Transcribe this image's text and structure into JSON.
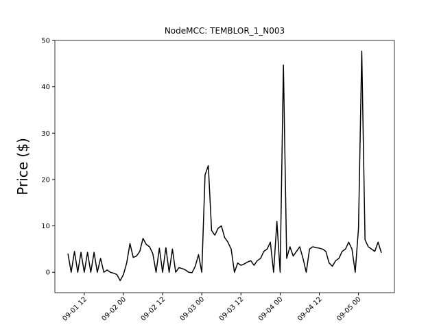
{
  "chart_data": {
    "type": "line",
    "title": "NodeMCC: TEMBLOR_1_N003",
    "y_label": "Price ($)",
    "color": "#000000",
    "x": [
      "09-01 07",
      "09-01 08",
      "09-01 09",
      "09-01 10",
      "09-01 11",
      "09-01 12",
      "09-01 13",
      "09-01 14",
      "09-01 15",
      "09-01 16",
      "09-01 17",
      "09-01 18",
      "09-01 19",
      "09-01 20",
      "09-01 21",
      "09-01 22",
      "09-01 23",
      "09-02 00",
      "09-02 01",
      "09-02 02",
      "09-02 03",
      "09-02 04",
      "09-02 05",
      "09-02 06",
      "09-02 07",
      "09-02 08",
      "09-02 09",
      "09-02 10",
      "09-02 11",
      "09-02 12",
      "09-02 13",
      "09-02 14",
      "09-02 15",
      "09-02 16",
      "09-02 17",
      "09-02 18",
      "09-02 19",
      "09-02 20",
      "09-02 21",
      "09-02 22",
      "09-02 23",
      "09-03 00",
      "09-03 01",
      "09-03 02",
      "09-03 03",
      "09-03 04",
      "09-03 05",
      "09-03 06",
      "09-03 07",
      "09-03 08",
      "09-03 09",
      "09-03 10",
      "09-03 11",
      "09-03 12",
      "09-03 13",
      "09-03 14",
      "09-03 15",
      "09-03 16",
      "09-03 17",
      "09-03 18",
      "09-03 19",
      "09-03 20",
      "09-03 21",
      "09-03 22",
      "09-03 23",
      "09-04 00",
      "09-04 01",
      "09-04 02",
      "09-04 03",
      "09-04 04",
      "09-04 05",
      "09-04 06",
      "09-04 07",
      "09-04 08",
      "09-04 09",
      "09-04 10",
      "09-04 11",
      "09-04 12",
      "09-04 13",
      "09-04 14",
      "09-04 15",
      "09-04 16",
      "09-04 17",
      "09-04 18",
      "09-04 19",
      "09-04 20",
      "09-04 21",
      "09-04 22",
      "09-04 23",
      "09-05 00",
      "09-05 01",
      "09-05 02",
      "09-05 03",
      "09-05 04",
      "09-05 05",
      "09-05 06",
      "09-05 07"
    ],
    "values": [
      4,
      0,
      4.5,
      0,
      4.3,
      0,
      4.3,
      0,
      4.3,
      0,
      3,
      0,
      0.5,
      0,
      -0.2,
      -0.5,
      -1.8,
      -0.5,
      2,
      6.2,
      3.2,
      3.5,
      4.5,
      7.3,
      6,
      5.5,
      4,
      0,
      5.2,
      0,
      5.3,
      0,
      5,
      0,
      1,
      0.8,
      0.5,
      0,
      -0.1,
      1.3,
      3.8,
      0,
      21,
      23,
      9,
      8,
      9.5,
      10,
      7.5,
      6.5,
      5,
      0,
      2,
      1.5,
      1.8,
      2.2,
      2.5,
      1.5,
      2.5,
      3,
      4.5,
      5,
      6.5,
      0,
      11,
      0,
      44.7,
      3,
      5.5,
      3.5,
      4.5,
      5.5,
      3,
      0,
      5,
      5.5,
      5.3,
      5.2,
      5,
      4.5,
      2,
      1.3,
      2.5,
      3,
      4.5,
      5,
      6.5,
      5,
      0,
      9.5,
      47.7,
      7,
      5.5,
      5,
      4.5,
      6.5,
      4.2
    ],
    "xlim": [
      "09-01 03",
      "09-05 11"
    ],
    "xticks": [
      "09-01 12",
      "09-02 00",
      "09-02 12",
      "09-03 00",
      "09-03 12",
      "09-04 00",
      "09-04 12",
      "09-05 00"
    ],
    "ylim": [
      -4.4,
      50
    ],
    "yticks": [
      0,
      10,
      20,
      30,
      40,
      50
    ]
  }
}
